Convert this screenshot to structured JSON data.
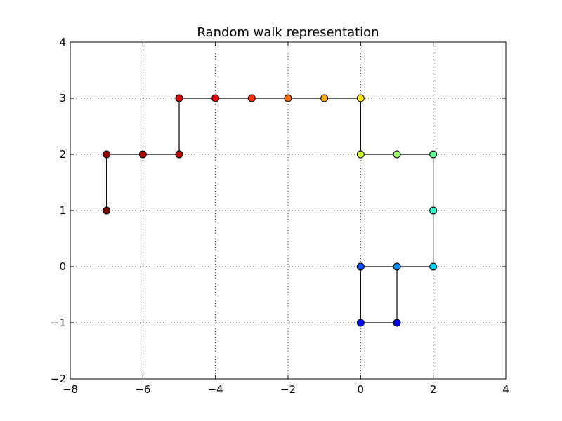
{
  "chart_data": {
    "type": "line",
    "title": "Random walk representation",
    "xlabel": "",
    "ylabel": "",
    "xlim": [
      -8,
      4
    ],
    "ylim": [
      -2,
      4
    ],
    "xticks": [
      -8,
      -6,
      -4,
      -2,
      0,
      2,
      4
    ],
    "yticks": [
      -2,
      -1,
      0,
      1,
      2,
      3,
      4
    ],
    "xtick_labels": [
      "−8",
      "−6",
      "−4",
      "−2",
      "0",
      "2",
      "4"
    ],
    "ytick_labels": [
      "−2",
      "−1",
      "0",
      "1",
      "2",
      "3",
      "4"
    ],
    "grid": true,
    "series": [
      {
        "x": [
          0,
          1,
          1,
          0,
          0,
          1,
          2,
          2,
          2,
          1,
          0,
          0,
          -1,
          -2,
          -3,
          -4,
          -5,
          -5,
          -6,
          -7,
          -7
        ],
        "y": [
          0,
          0,
          -1,
          -1,
          0,
          0,
          0,
          1,
          2,
          2,
          2,
          3,
          3,
          3,
          3,
          3,
          3,
          2,
          2,
          2,
          1
        ],
        "point_colors": [
          "#00007f",
          "#0000c8",
          "#0000ed",
          "#0010ff",
          "#0050ff",
          "#0090ff",
          "#00d4ff",
          "#29ffce",
          "#60ff97",
          "#97ff60",
          "#ceff29",
          "#ffe600",
          "#ffa700",
          "#ff6800",
          "#ff2900",
          "#ee0000",
          "#d40000",
          "#c10000",
          "#b20000",
          "#a20000",
          "#7f0000"
        ]
      }
    ]
  }
}
